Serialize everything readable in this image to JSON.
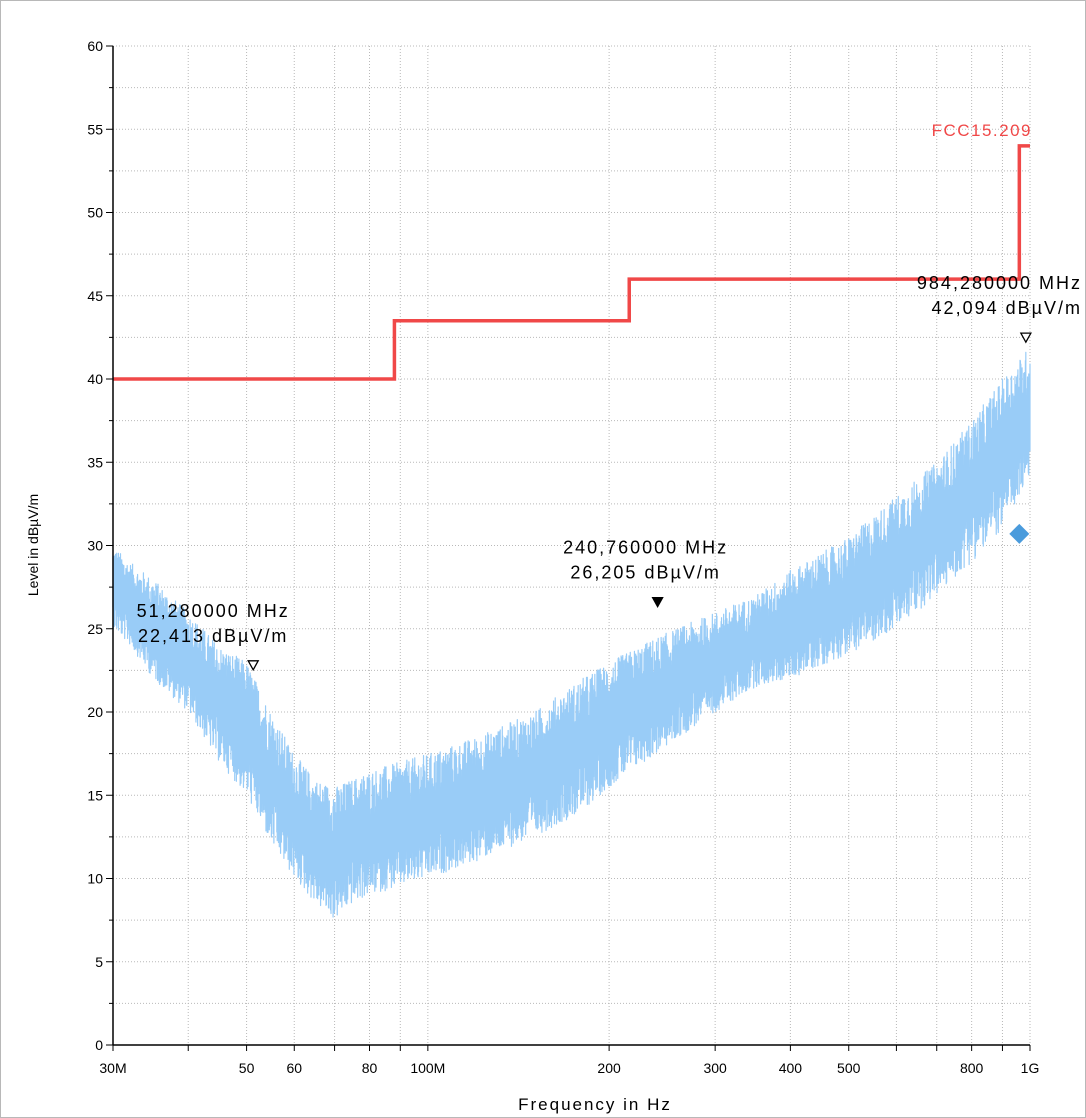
{
  "chart_data": {
    "type": "line",
    "xlabel": "Frequency in Hz",
    "ylabel": "Level in dBµV/m",
    "x_scale": "log",
    "xlim": [
      30,
      1000
    ],
    "ylim": [
      0,
      60
    ],
    "grid": true,
    "x_ticks": [
      {
        "value": 30,
        "label": "30M"
      },
      {
        "value": 50,
        "label": "50"
      },
      {
        "value": 60,
        "label": "60"
      },
      {
        "value": 80,
        "label": "80"
      },
      {
        "value": 100,
        "label": "100M"
      },
      {
        "value": 200,
        "label": "200"
      },
      {
        "value": 300,
        "label": "300"
      },
      {
        "value": 400,
        "label": "400"
      },
      {
        "value": 500,
        "label": "500"
      },
      {
        "value": 800,
        "label": "800"
      },
      {
        "value": 1000,
        "label": "1G"
      }
    ],
    "y_ticks": [
      {
        "value": 0,
        "label": "0"
      },
      {
        "value": 5,
        "label": "5"
      },
      {
        "value": 10,
        "label": "10"
      },
      {
        "value": 15,
        "label": "15"
      },
      {
        "value": 20,
        "label": "20"
      },
      {
        "value": 25,
        "label": "25"
      },
      {
        "value": 30,
        "label": "30"
      },
      {
        "value": 35,
        "label": "35"
      },
      {
        "value": 40,
        "label": "40"
      },
      {
        "value": 45,
        "label": "45"
      },
      {
        "value": 50,
        "label": "50"
      },
      {
        "value": 55,
        "label": "55"
      },
      {
        "value": 60,
        "label": "60"
      }
    ],
    "limit_line": {
      "name": "FCC15.209",
      "color": "#f04848",
      "steps": [
        {
          "from": 30,
          "to": 88,
          "level": 40.0
        },
        {
          "from": 88,
          "to": 216,
          "level": 43.5
        },
        {
          "from": 216,
          "to": 960,
          "level": 46.0
        },
        {
          "from": 960,
          "to": 1000,
          "level": 54.0
        }
      ]
    },
    "series": [
      {
        "color": "#99ccf7",
        "envelope": {
          "x": [
            30,
            32,
            35,
            40,
            45,
            50,
            55,
            60,
            65,
            70,
            75,
            80,
            90,
            100,
            120,
            150,
            180,
            200,
            240,
            300,
            350,
            400,
            500,
            600,
            700,
            800,
            900,
            1000
          ],
          "upper": [
            30,
            29,
            28,
            26,
            24,
            23,
            20,
            17.5,
            16,
            15.5,
            16,
            16.5,
            17,
            17.5,
            18.5,
            20,
            22,
            23,
            24.5,
            26,
            27,
            28.5,
            30.5,
            33,
            35,
            37.5,
            40,
            42
          ],
          "lower": [
            25,
            24,
            22,
            20,
            17,
            15,
            12,
            10,
            8.5,
            7.5,
            8.5,
            9,
            9.5,
            10,
            11,
            12.5,
            14,
            15.5,
            17.5,
            20,
            21.5,
            22,
            23.5,
            25,
            27,
            29,
            31,
            34
          ]
        }
      }
    ],
    "markers": [
      {
        "freq": 51.28,
        "level": 22.413,
        "label1": "51,280000 MHz",
        "label2": "22,413 dBµV/m",
        "filled": false
      },
      {
        "freq": 240.76,
        "level": 26.205,
        "label1": "240,760000 MHz",
        "label2": "26,205 dBµV/m",
        "filled": true
      },
      {
        "freq": 984.28,
        "level": 42.094,
        "label1": "984,280000 MHz",
        "label2": "42,094 dBµV/m",
        "filled": false
      }
    ],
    "final_points": [
      {
        "freq": 960,
        "level": 30.7,
        "color": "#4a9bdc"
      }
    ]
  }
}
